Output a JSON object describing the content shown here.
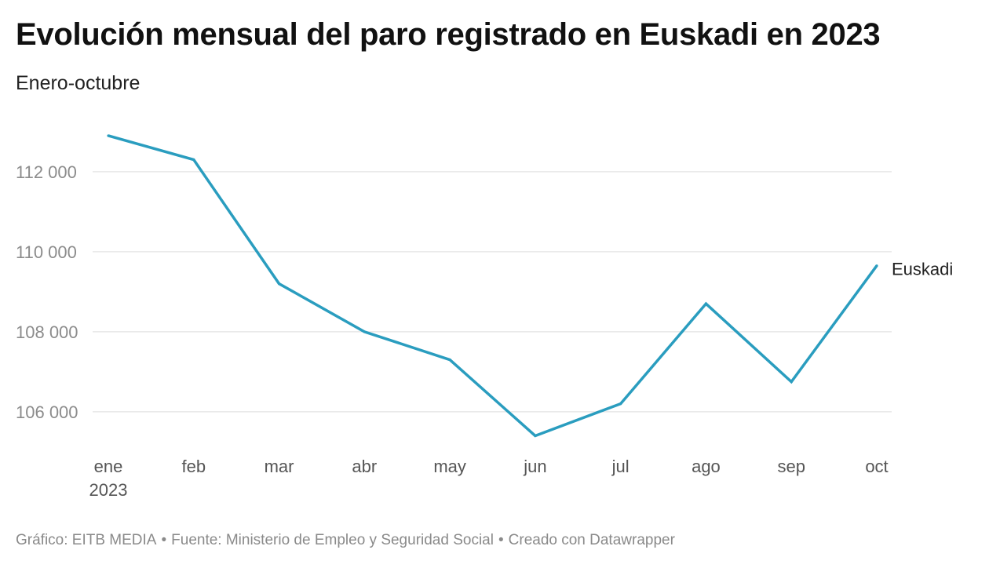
{
  "header": {
    "title": "Evolución mensual del paro registrado en Euskadi en 2023",
    "subtitle": "Enero-octubre"
  },
  "footer": {
    "credit": "Gráfico: EITB MEDIA",
    "source": "Fuente: Ministerio de Empleo y Seguridad Social",
    "tool": "Creado con Datawrapper",
    "separator": "•"
  },
  "colors": {
    "line": "#2a9dbf",
    "grid": "#e3e3e3",
    "tick_text": "#8c8c8c",
    "x_tick_text": "#555555",
    "label_text": "#222222"
  },
  "chart_data": {
    "type": "line",
    "title": "Evolución mensual del paro registrado en Euskadi en 2023",
    "subtitle": "Enero-octubre",
    "categories": [
      "ene",
      "feb",
      "mar",
      "abr",
      "may",
      "jun",
      "jul",
      "ago",
      "sep",
      "oct"
    ],
    "category_year": "2023",
    "series": [
      {
        "name": "Euskadi",
        "values": [
          112900,
          112300,
          109200,
          108000,
          107300,
          105400,
          106200,
          108700,
          106750,
          109650
        ]
      }
    ],
    "y_ticks": [
      106000,
      108000,
      110000,
      112000
    ],
    "y_tick_labels": [
      "106 000",
      "108 000",
      "110 000",
      "112 000"
    ],
    "ylim": [
      104860,
      113840
    ],
    "xlabel": "",
    "ylabel": "",
    "grid": "horizontal",
    "legend": "direct-label-right"
  }
}
